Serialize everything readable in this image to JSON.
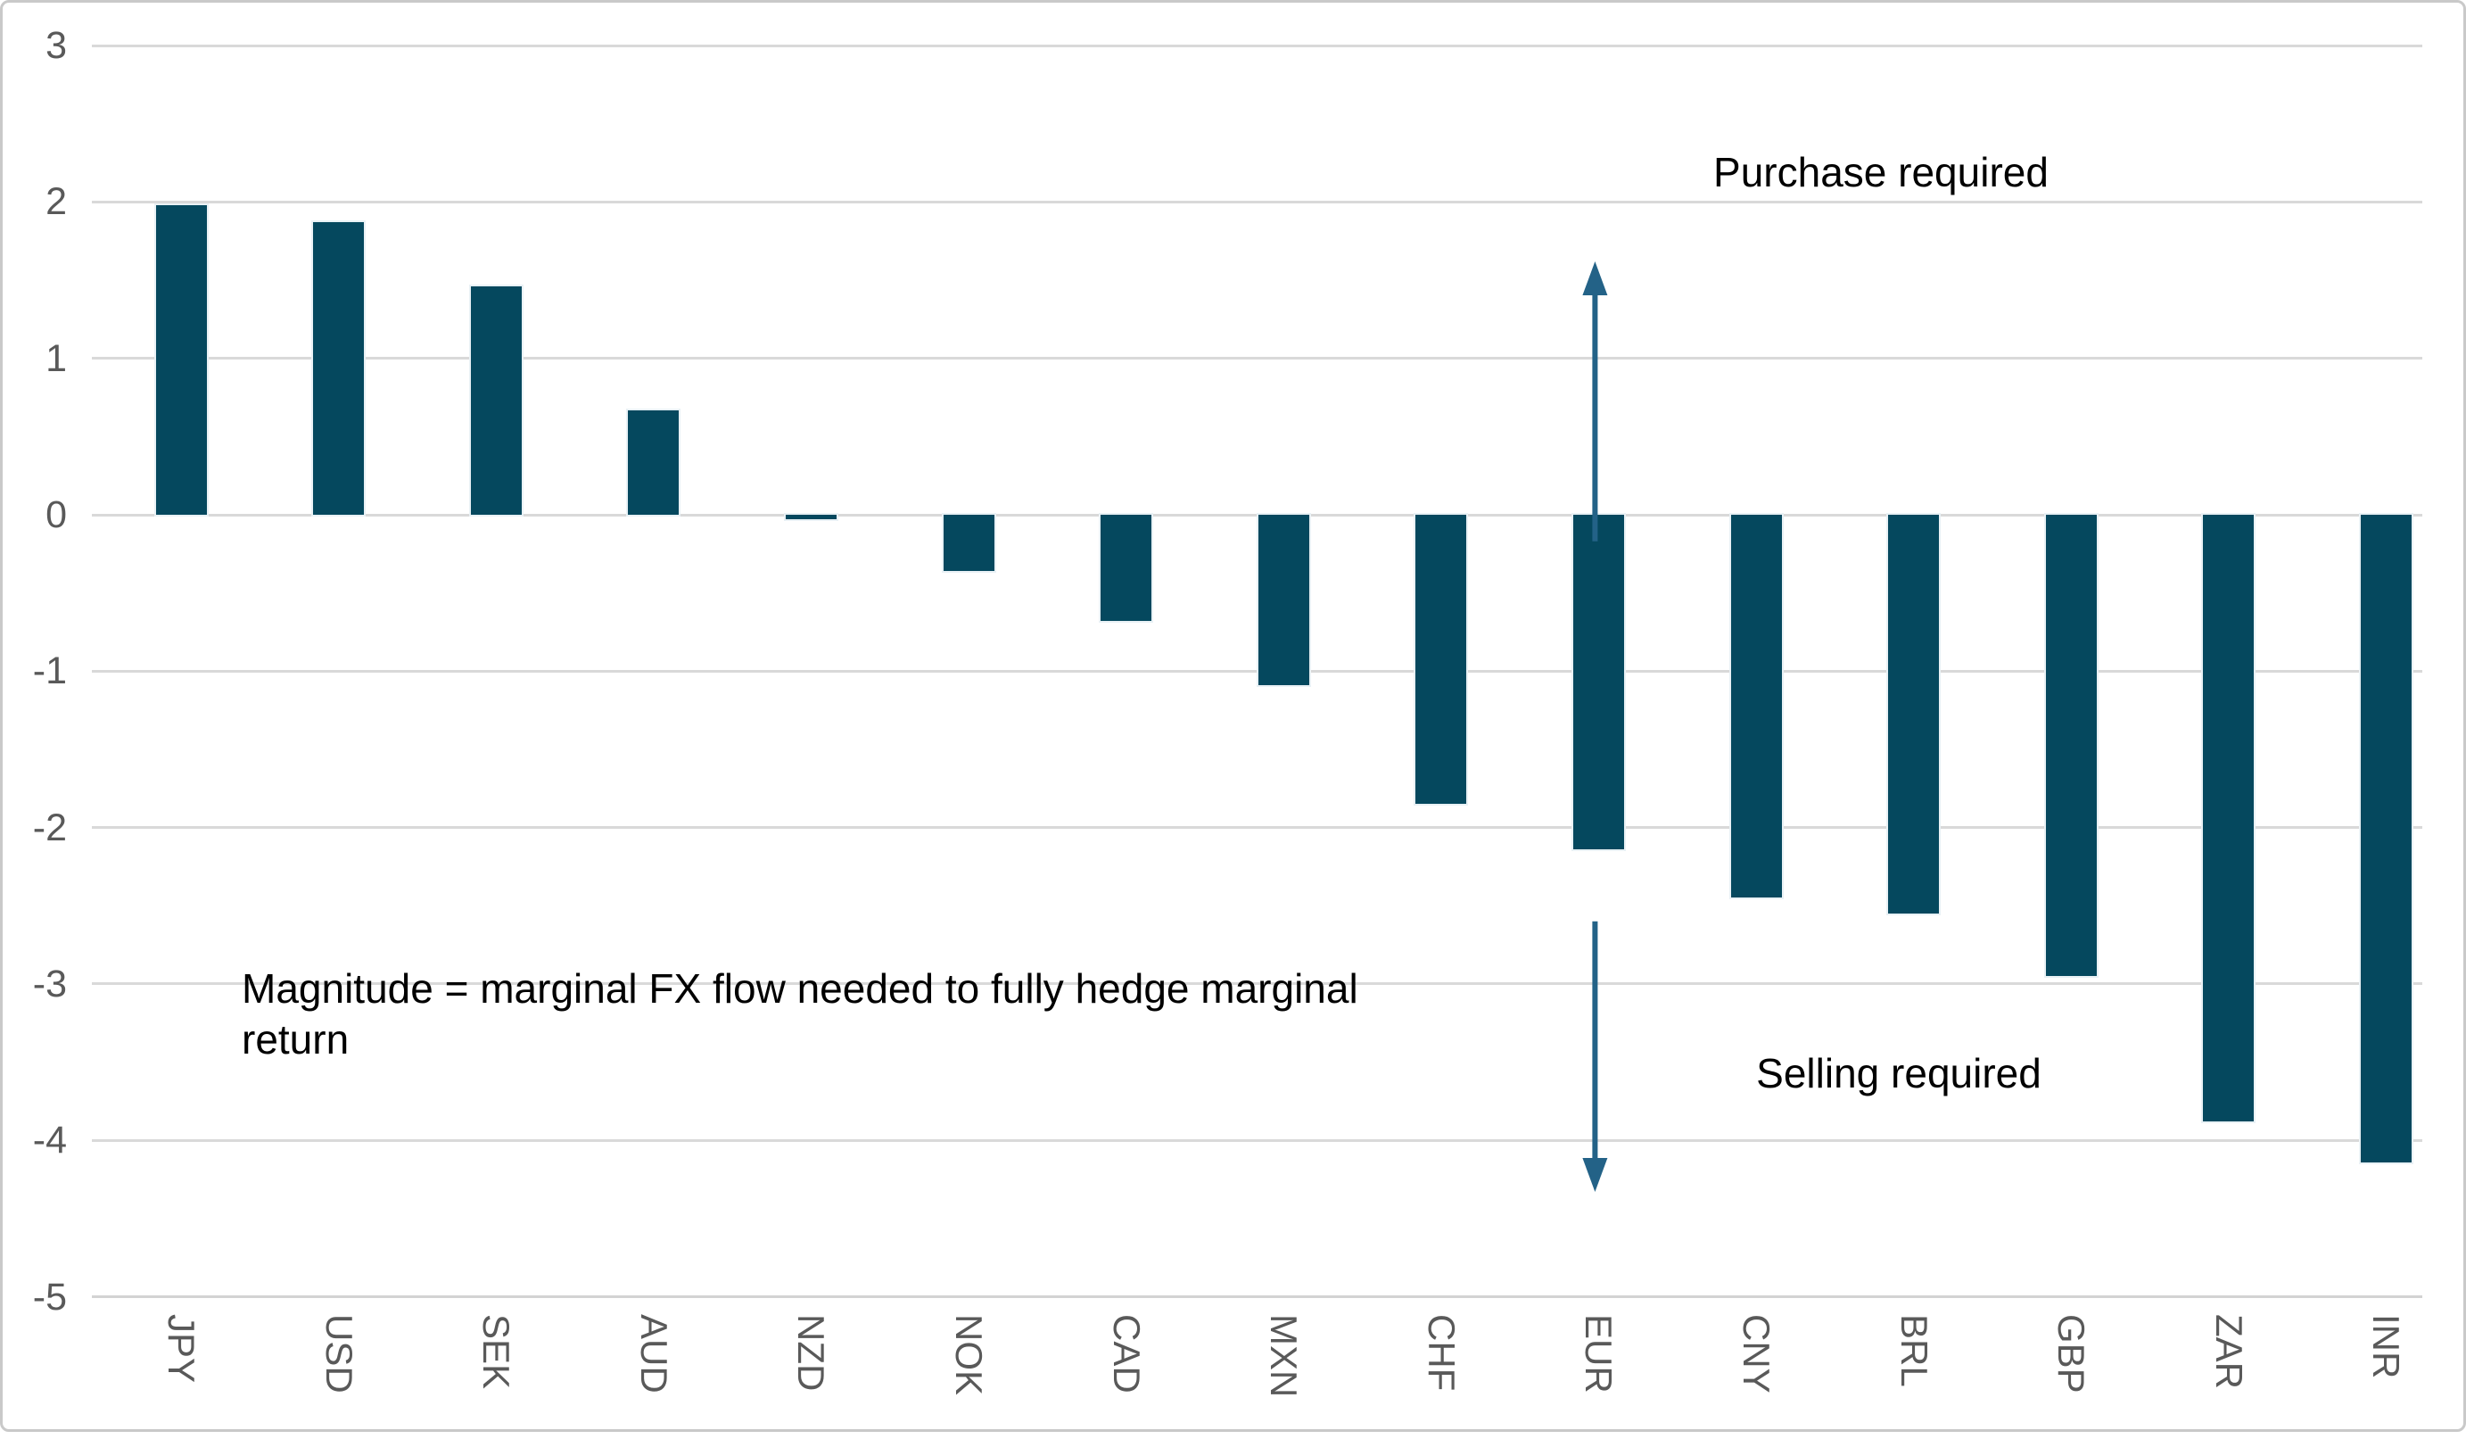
{
  "chart_data": {
    "type": "bar",
    "title": "",
    "xlabel": "",
    "ylabel": "",
    "categories": [
      "JPY",
      "USD",
      "SEK",
      "AUD",
      "NZD",
      "NOK",
      "CAD",
      "MXN",
      "CHF",
      "EUR",
      "CNY",
      "BRL",
      "GBP",
      "ZAR",
      "INR"
    ],
    "values": [
      1.98,
      1.87,
      1.46,
      0.67,
      -0.03,
      -0.36,
      -0.68,
      -1.09,
      -1.85,
      -2.14,
      -2.45,
      -2.55,
      -2.95,
      -3.88,
      -4.14
    ],
    "ylim": [
      -5,
      3
    ],
    "yticks": [
      "3",
      "2",
      "1",
      "0",
      "-1",
      "-2",
      "-3",
      "-4",
      "-5"
    ],
    "ytick_values": [
      3,
      2,
      1,
      0,
      -1,
      -2,
      -3,
      -4,
      -5
    ],
    "grid": true,
    "legend": "none",
    "bar_color": "#05485e",
    "arrows": [
      {
        "name": "purchase-arrow",
        "direction": "up",
        "at_category": "EUR",
        "from_value": -0.17,
        "to_value": 1.62
      },
      {
        "name": "selling-arrow",
        "direction": "down",
        "at_category": "EUR",
        "from_value": -2.6,
        "to_value": -4.33
      }
    ]
  },
  "annotations": {
    "purchase": "Purchase required",
    "selling": "Selling required",
    "magnitude": "Magnitude = marginal FX flow needed to fully hedge marginal return"
  },
  "colors": {
    "bar": "#05485e",
    "arrow": "#236287",
    "gridline": "#d9d9d9",
    "axis_line": "#d3d3d3",
    "tick_text": "#595959",
    "annotation_text": "#000000",
    "border": "#c9c9c9",
    "background": "#ffffff"
  }
}
